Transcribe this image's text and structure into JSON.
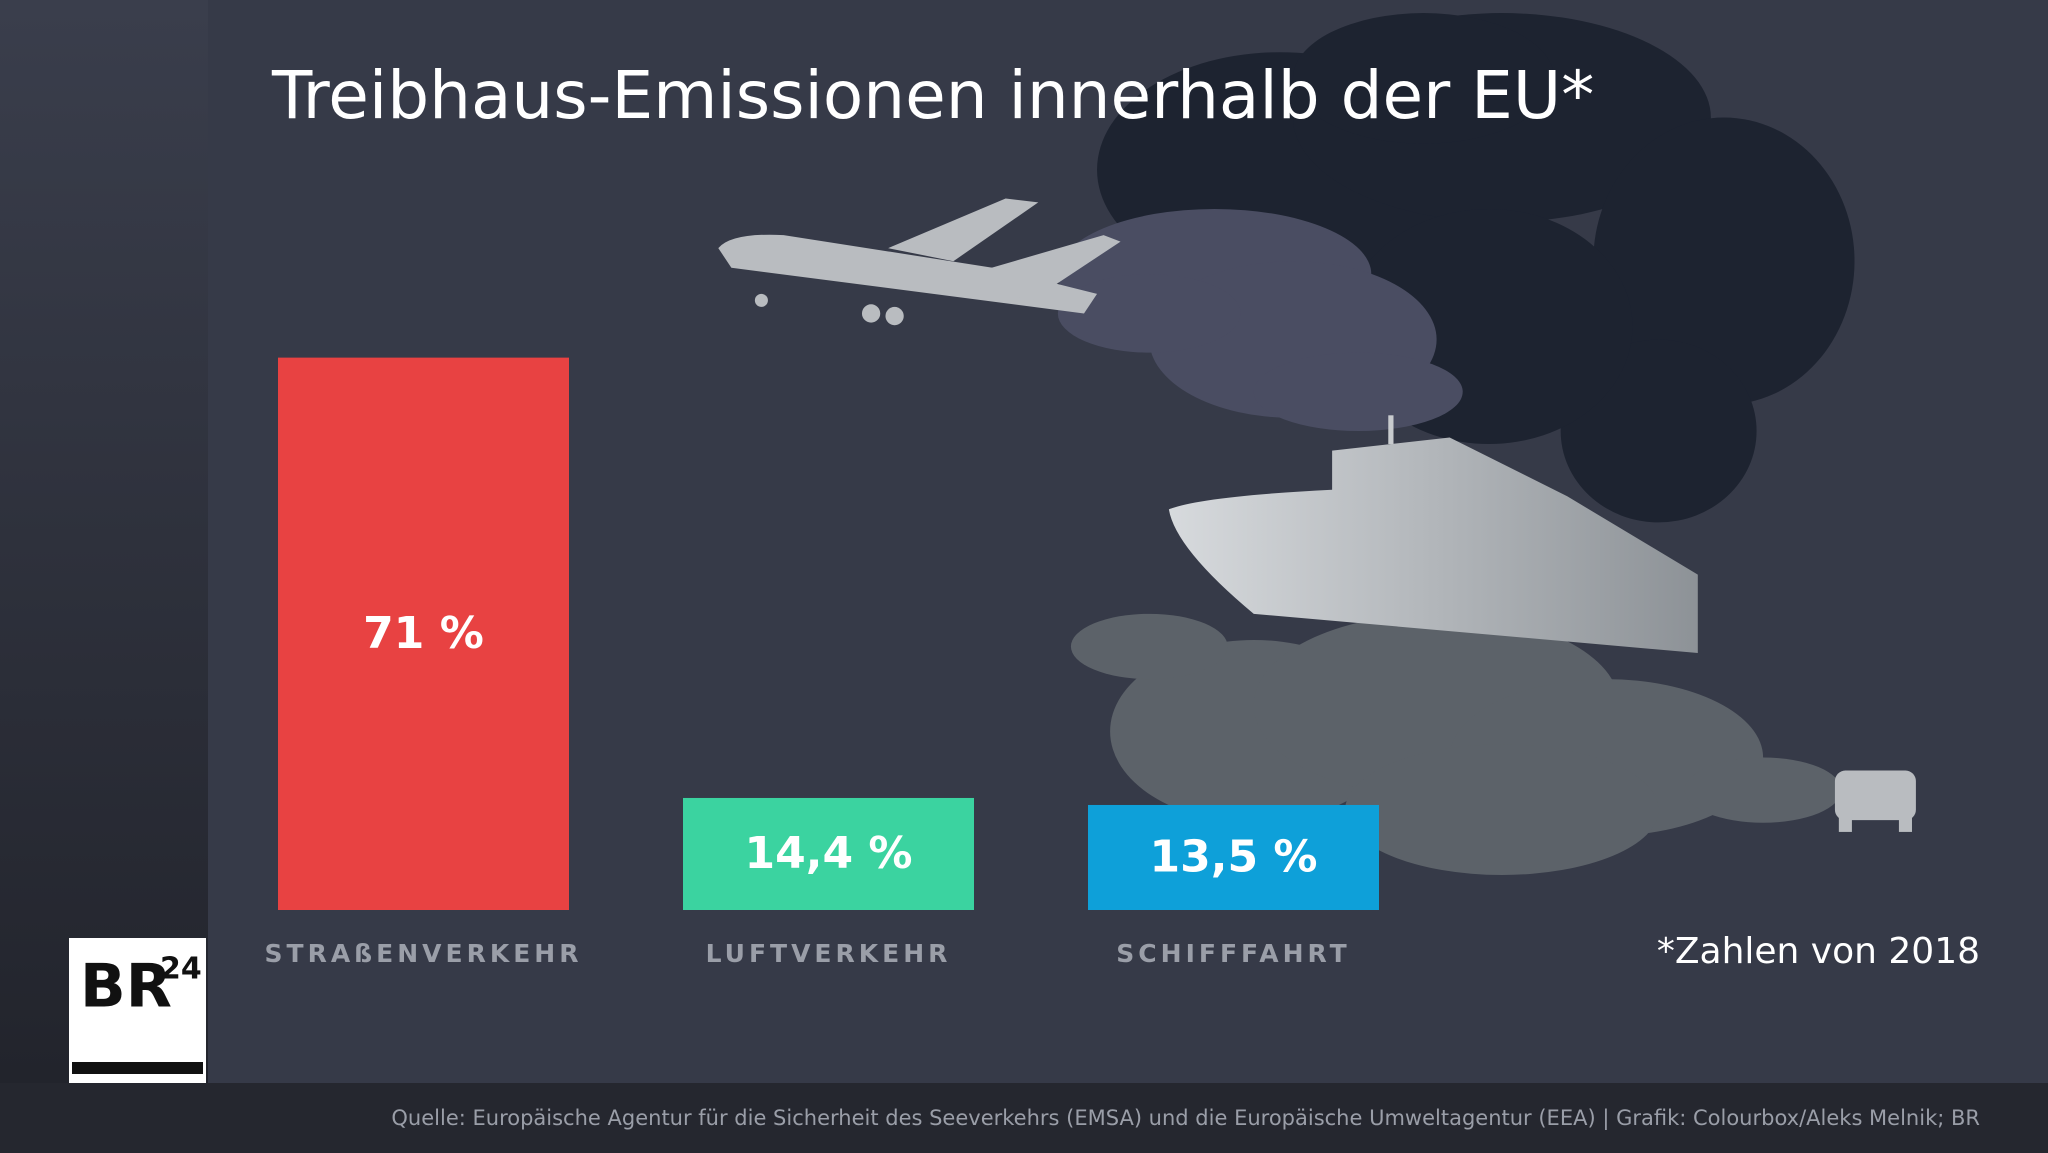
{
  "chart_data": {
    "type": "bar",
    "title": "Treibhaus-Emissionen innerhalb der EU*",
    "categories": [
      "STRAßENVERKEHR",
      "LUFTVERKEHR",
      "SCHIFFFAHRT"
    ],
    "values": [
      71,
      14.4,
      13.5
    ],
    "value_labels": [
      "71 %",
      "14,4 %",
      "13,5 %"
    ],
    "colors": [
      "#e84242",
      "#3bd3a0",
      "#0ea0d9"
    ],
    "note": "*Zahlen von 2018",
    "source": "Quelle: Europäische Agentur für die Sicherheit des Seeverkehrs (EMSA) und die Europäische Umweltagentur (EEA) | Grafik: Colourbox/Aleks Melnik; BR",
    "logo": {
      "main": "BR",
      "sup": "24"
    }
  }
}
